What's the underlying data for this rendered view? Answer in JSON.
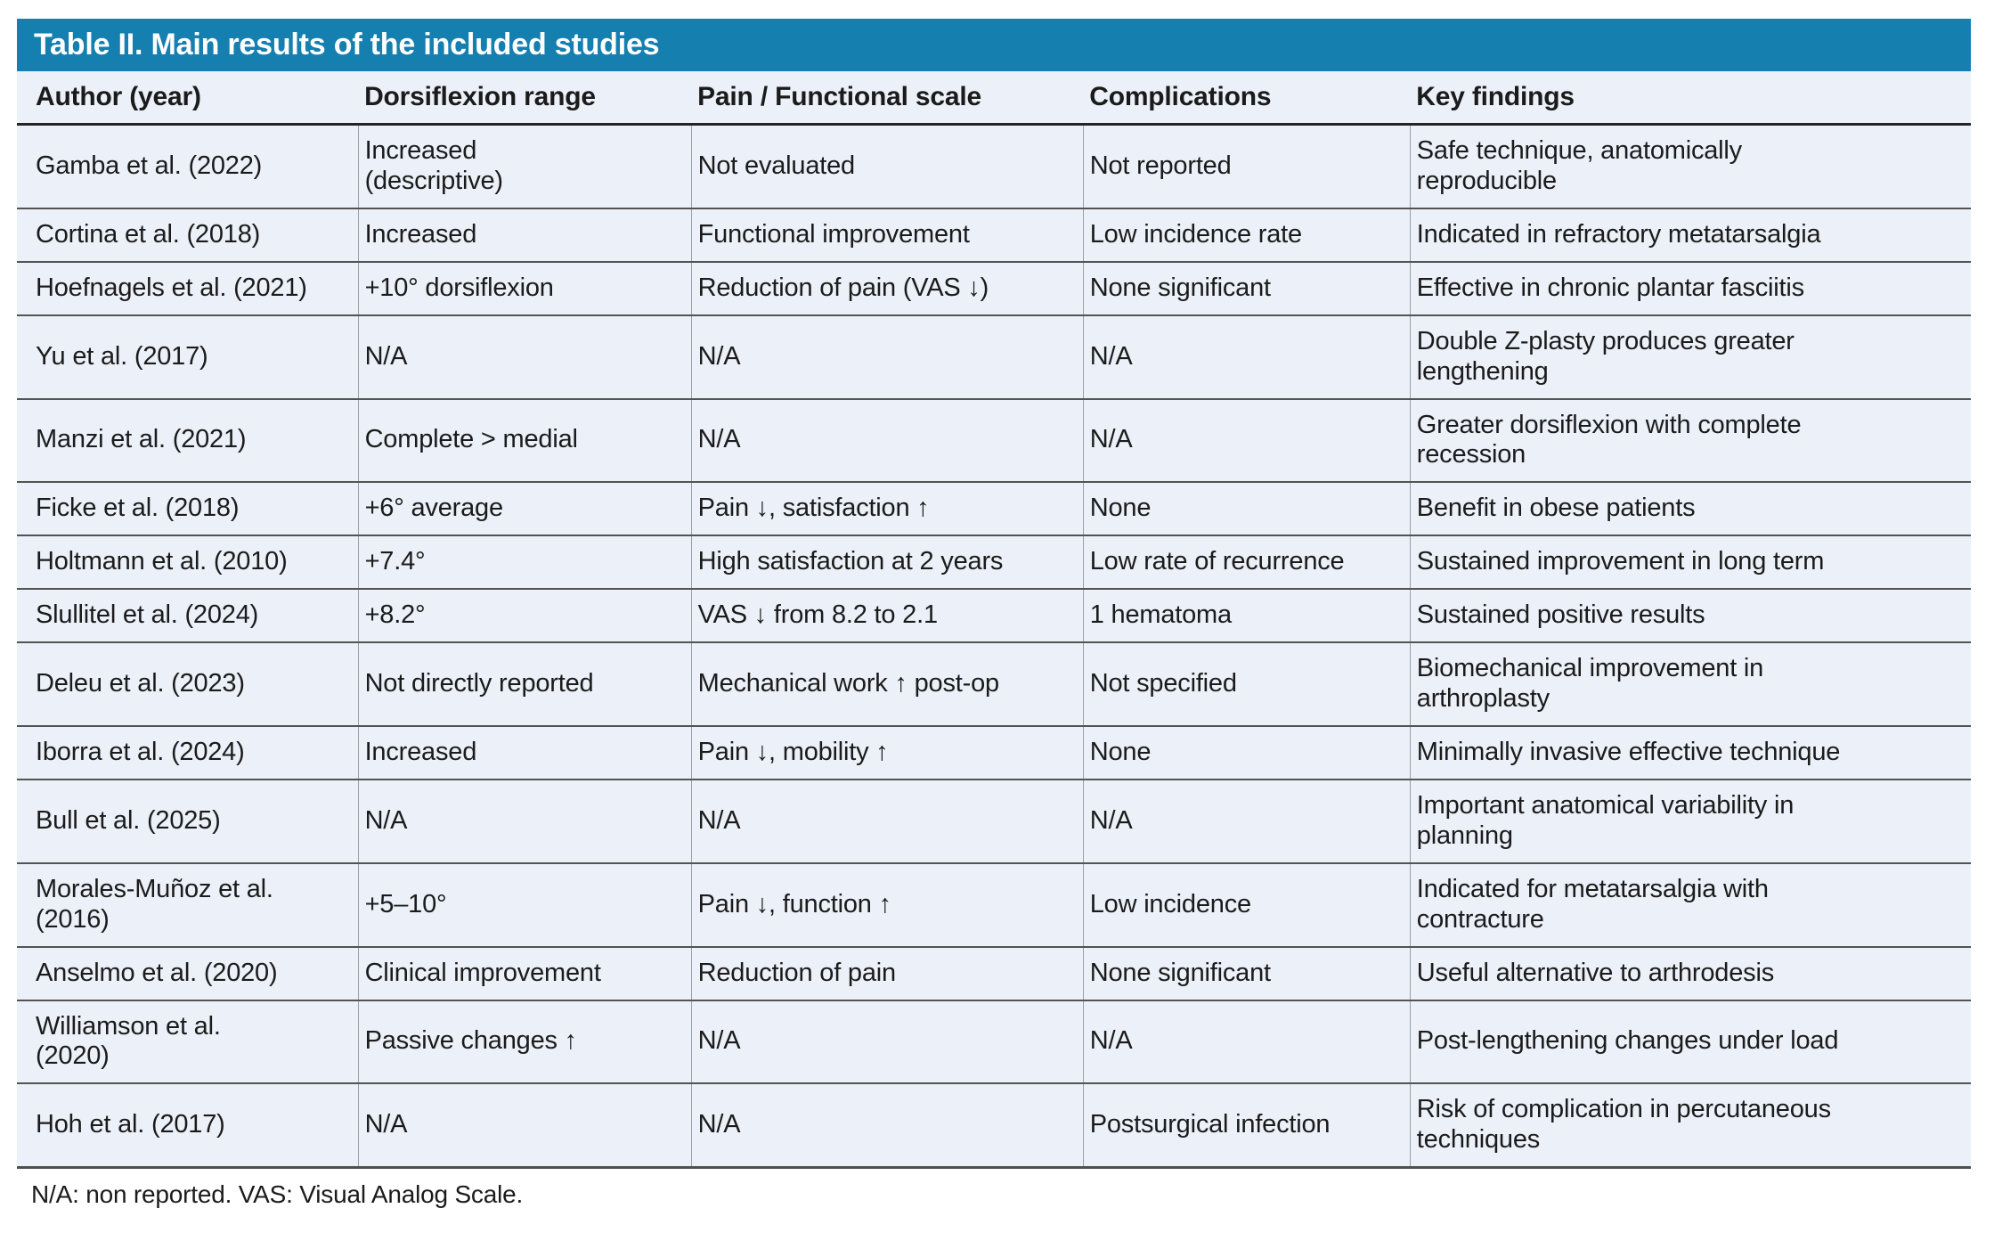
{
  "colors": {
    "title_bar": "#157fb0",
    "title_text": "#ffffff",
    "table_background": "#ecf0f8",
    "row_border": "#535353",
    "column_border": "#98a0ac",
    "body_text": "#1b1b1b"
  },
  "table": {
    "title": "Table II. Main results of the included studies",
    "columns": [
      "Author (year)",
      "Dorsiflexion range",
      "Pain / Functional scale",
      "Complications",
      "Key findings"
    ],
    "rows": [
      {
        "author": "Gamba et al. (2022)",
        "dorsiflexion": "Increased\n(descriptive)",
        "pain": "Not evaluated",
        "complications": "Not reported",
        "findings": "Safe technique, anatomically\nreproducible"
      },
      {
        "author": "Cortina et al. (2018)",
        "dorsiflexion": "Increased",
        "pain": "Functional improvement",
        "complications": "Low incidence rate",
        "findings": "Indicated in refractory metatarsalgia"
      },
      {
        "author": "Hoefnagels et al. (2021)",
        "dorsiflexion": "+10° dorsiflexion",
        "pain": "Reduction of pain (VAS ↓)",
        "complications": "None significant",
        "findings": "Effective in chronic plantar fasciitis"
      },
      {
        "author": "Yu et al. (2017)",
        "dorsiflexion": "N/A",
        "pain": "N/A",
        "complications": "N/A",
        "findings": "Double Z-plasty produces greater\nlengthening"
      },
      {
        "author": "Manzi et al. (2021)",
        "dorsiflexion": "Complete > medial",
        "pain": "N/A",
        "complications": "N/A",
        "findings": "Greater dorsiflexion with complete\nrecession"
      },
      {
        "author": "Ficke et al. (2018)",
        "dorsiflexion": "+6° average",
        "pain": "Pain ↓, satisfaction ↑",
        "complications": "None",
        "findings": "Benefit in obese patients"
      },
      {
        "author": "Holtmann et al. (2010)",
        "dorsiflexion": "+7.4°",
        "pain": "High satisfaction at 2 years",
        "complications": "Low rate of recurrence",
        "findings": "Sustained improvement in long term"
      },
      {
        "author": "Slullitel et al. (2024)",
        "dorsiflexion": "+8.2°",
        "pain": "VAS ↓ from 8.2 to 2.1",
        "complications": "1 hematoma",
        "findings": "Sustained positive results"
      },
      {
        "author": "Deleu et al. (2023)",
        "dorsiflexion": "Not directly reported",
        "pain": "Mechanical work ↑ post-op",
        "complications": "Not specified",
        "findings": "Biomechanical improvement in\narthroplasty"
      },
      {
        "author": "Iborra et al. (2024)",
        "dorsiflexion": "Increased",
        "pain": "Pain ↓, mobility ↑",
        "complications": "None",
        "findings": "Minimally invasive effective technique"
      },
      {
        "author": "Bull et al. (2025)",
        "dorsiflexion": "N/A",
        "pain": "N/A",
        "complications": "N/A",
        "findings": "Important anatomical variability in\nplanning"
      },
      {
        "author": "Morales-Muñoz et al.\n(2016)",
        "dorsiflexion": "+5–10°",
        "pain": "Pain ↓, function ↑",
        "complications": "Low incidence",
        "findings": "Indicated for metatarsalgia with\ncontracture"
      },
      {
        "author": "Anselmo et al. (2020)",
        "dorsiflexion": "Clinical improvement",
        "pain": "Reduction of pain",
        "complications": "None significant",
        "findings": "Useful alternative to arthrodesis"
      },
      {
        "author": "Williamson et al.\n(2020)",
        "dorsiflexion": "Passive changes ↑",
        "pain": "N/A",
        "complications": "N/A",
        "findings": "Post-lengthening changes under load"
      },
      {
        "author": "Hoh et al. (2017)",
        "dorsiflexion": "N/A",
        "pain": "N/A",
        "complications": "Postsurgical infection",
        "findings": "Risk of complication in percutaneous\ntechniques"
      }
    ],
    "footnote": "N/A: non reported. VAS: Visual Analog Scale."
  }
}
